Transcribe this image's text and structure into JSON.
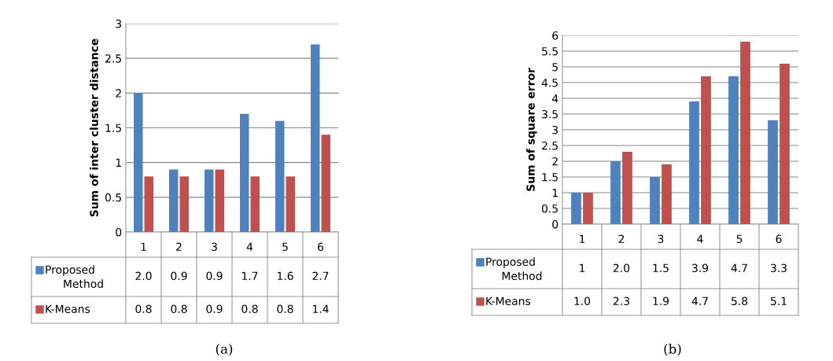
{
  "chart_data": [
    {
      "type": "bar",
      "ylabel": "Sum of inter cluster distance",
      "categories": [
        "1",
        "2",
        "3",
        "4",
        "5",
        "6"
      ],
      "ylim": [
        0,
        3
      ],
      "yticks": [
        0,
        0.5,
        1,
        1.5,
        2,
        2.5,
        3
      ],
      "grid": "y",
      "legend": "bottom left",
      "annotations": [
        "(a)"
      ],
      "series": [
        {
          "name": "Proposed Method",
          "color": "#4f81bd",
          "values": [
            2.0,
            0.9,
            0.9,
            1.7,
            1.6,
            2.7
          ],
          "value_labels": [
            "2.0",
            "0.9",
            "0.9",
            "1.7",
            "1.6",
            "2.7"
          ]
        },
        {
          "name": "K-Means",
          "color": "#c0504d",
          "values": [
            0.8,
            0.8,
            0.9,
            0.8,
            0.8,
            1.4
          ],
          "value_labels": [
            "0.8",
            "0.8",
            "0.9",
            "0.8",
            "0.8",
            "1.4"
          ]
        }
      ]
    },
    {
      "type": "bar",
      "ylabel": "Sum of square error",
      "categories": [
        "1",
        "2",
        "3",
        "4",
        "5",
        "6"
      ],
      "ylim": [
        0,
        6
      ],
      "yticks": [
        0,
        0.5,
        1,
        1.5,
        2,
        2.5,
        3,
        3.5,
        4,
        4.5,
        5,
        5.5,
        6
      ],
      "grid": "y",
      "legend": "bottom left",
      "annotations": [
        "(b)"
      ],
      "series": [
        {
          "name": "Proposed Method",
          "color": "#4f81bd",
          "values": [
            1,
            2.0,
            1.5,
            3.9,
            4.7,
            3.3
          ],
          "value_labels": [
            "1",
            "2.0",
            "1.5",
            "3.9",
            "4.7",
            "3.3"
          ]
        },
        {
          "name": "K-Means",
          "color": "#c0504d",
          "values": [
            1.0,
            2.3,
            1.9,
            4.7,
            5.8,
            5.1
          ],
          "value_labels": [
            "1.0",
            "2.3",
            "1.9",
            "4.7",
            "5.8",
            "5.1"
          ]
        }
      ]
    }
  ]
}
